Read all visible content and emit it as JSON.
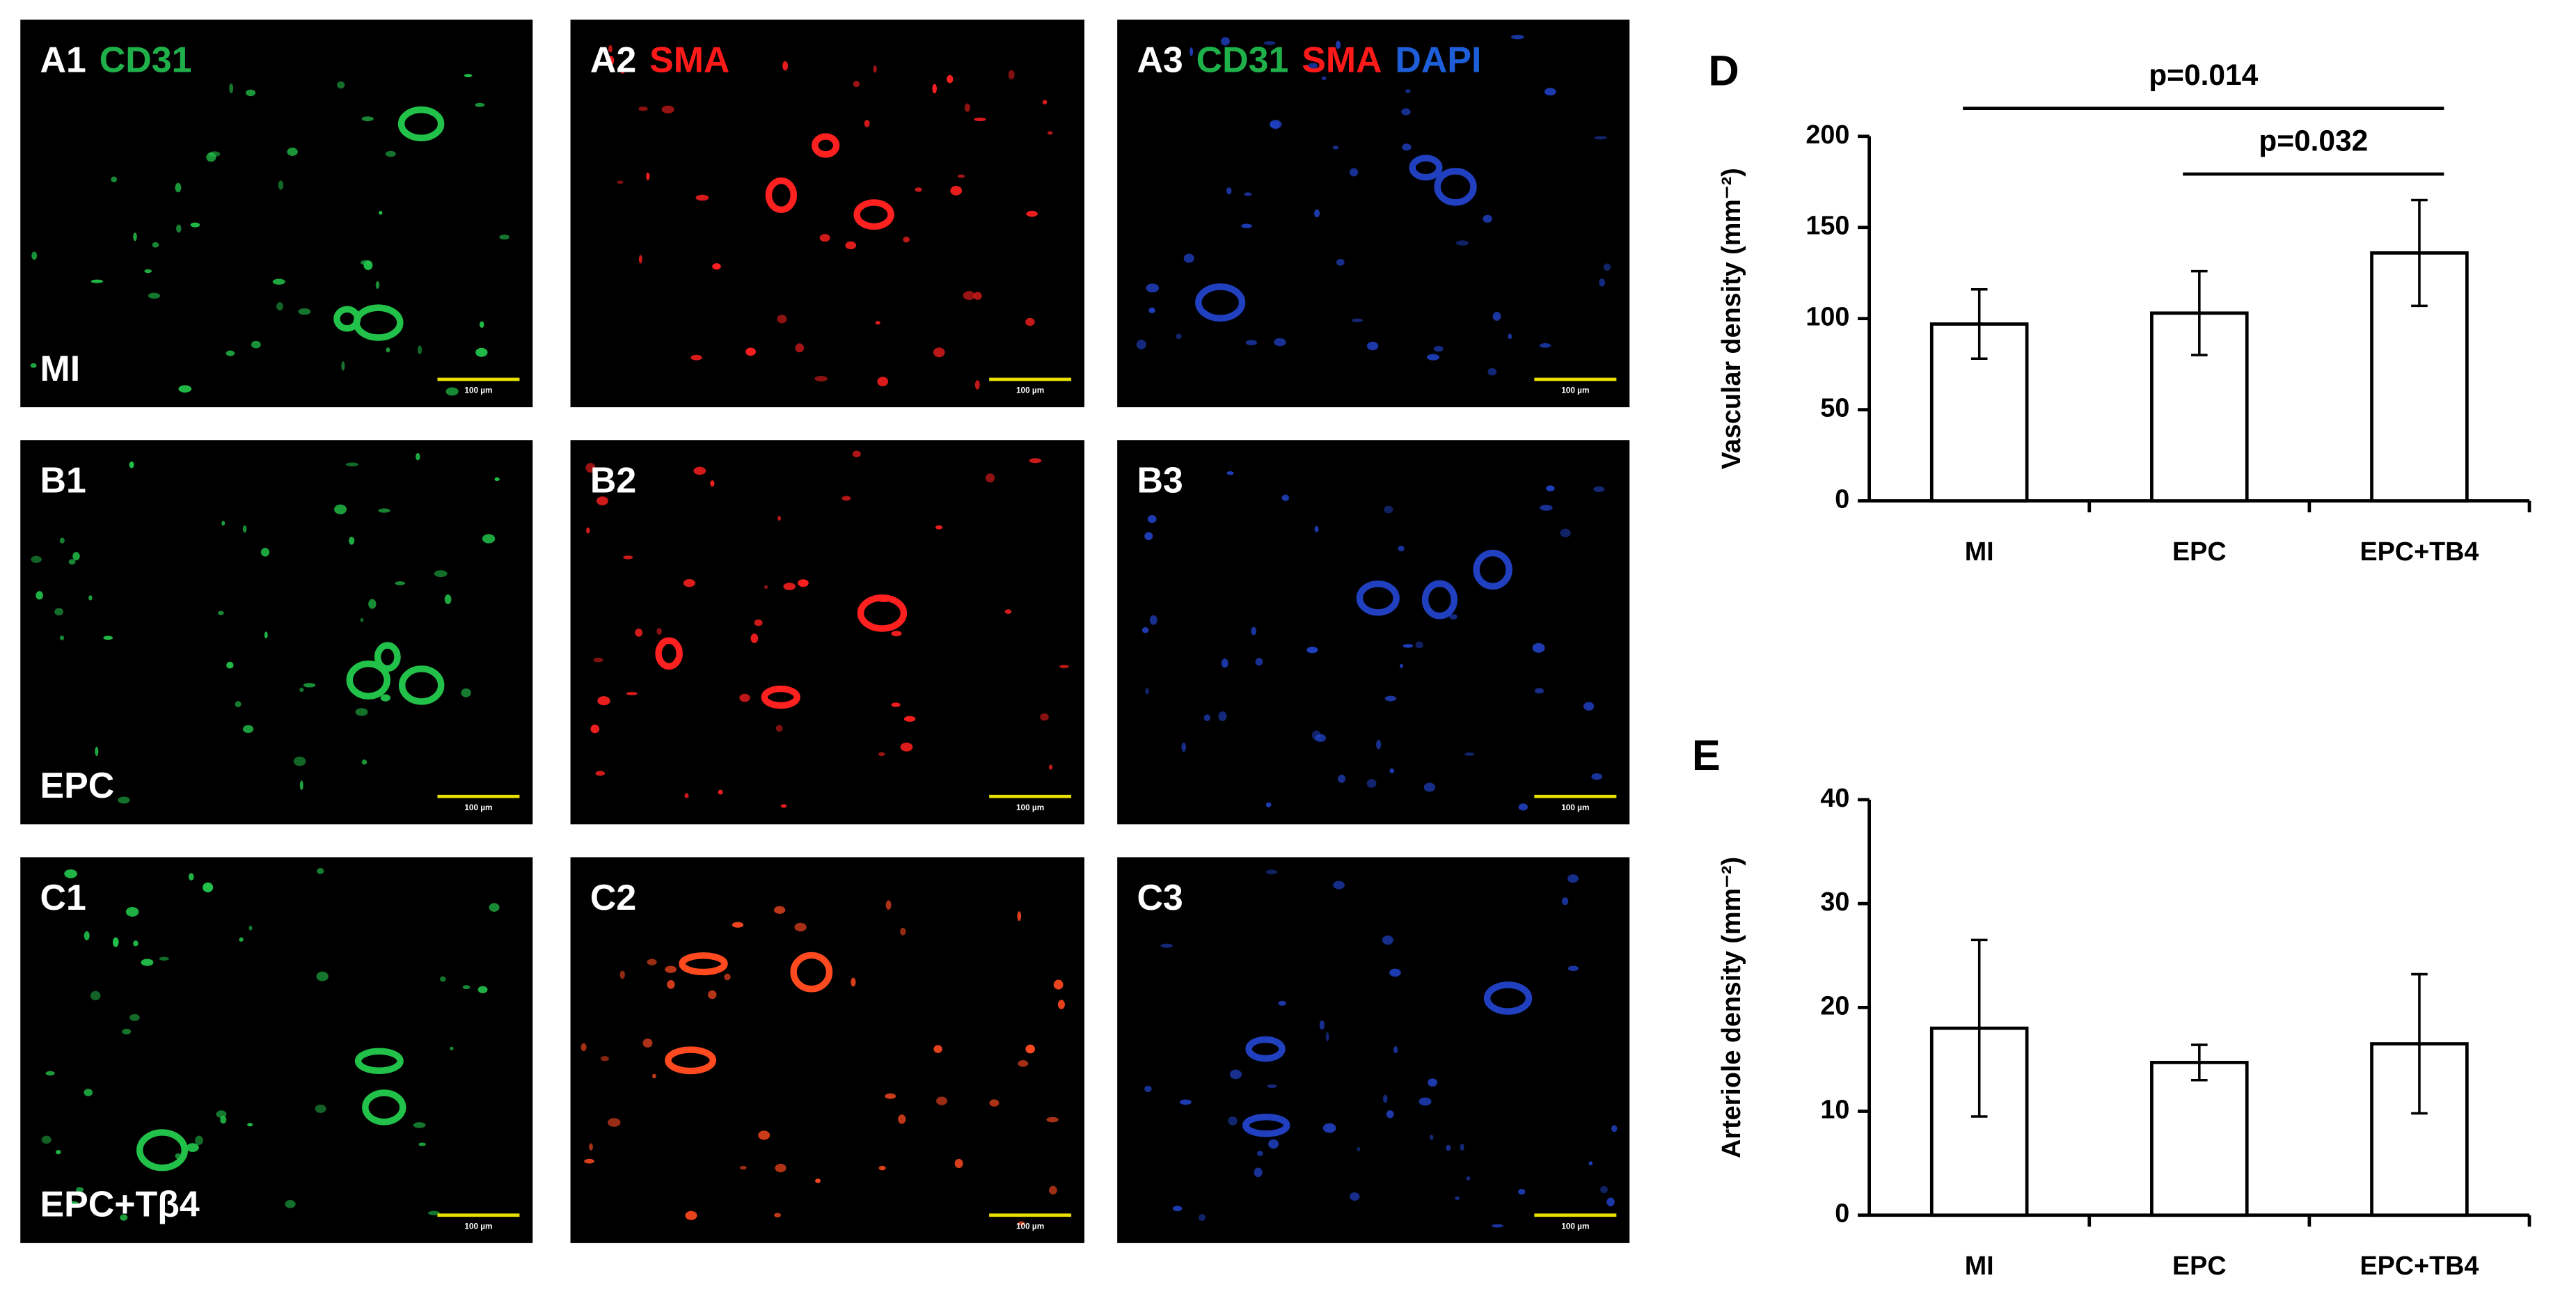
{
  "panels": [
    {
      "label": "A1",
      "stains": [
        {
          "text": "CD31",
          "color": "#1fb04a"
        }
      ],
      "group": "MI",
      "scale_bar": "100 µm",
      "tint": "#22c24a"
    },
    {
      "label": "A2",
      "stains": [
        {
          "text": "SMA",
          "color": "#ff1a1a"
        }
      ],
      "scale_bar": "100 µm",
      "tint": "#ff2020"
    },
    {
      "label": "A3",
      "stains": [
        {
          "text": "CD31",
          "color": "#1fb04a"
        },
        {
          "text": "SMA",
          "color": "#ff1a1a"
        },
        {
          "text": "DAPI",
          "color": "#1e5ed8"
        }
      ],
      "scale_bar": "100 µm",
      "tint": "#2040c0"
    },
    {
      "label": "B1",
      "stains": [],
      "group": "EPC",
      "scale_bar": "100 µm",
      "tint": "#22c24a"
    },
    {
      "label": "B2",
      "stains": [],
      "scale_bar": "100 µm",
      "tint": "#ff2020"
    },
    {
      "label": "B3",
      "stains": [],
      "scale_bar": "100 µm",
      "tint": "#2040c0"
    },
    {
      "label": "C1",
      "stains": [],
      "group": "EPC+Tβ4",
      "scale_bar": "100 µm",
      "tint": "#22c24a"
    },
    {
      "label": "C2",
      "stains": [],
      "scale_bar": "100 µm",
      "tint": "#ff4a20"
    },
    {
      "label": "C3",
      "stains": [],
      "scale_bar": "100 µm",
      "tint": "#2040c0"
    }
  ],
  "chart_data": [
    {
      "type": "bar",
      "title": "D",
      "ylabel": "Vascular density (mm⁻²)",
      "categories": [
        "MI",
        "EPC",
        "EPC+TB4"
      ],
      "values": [
        97,
        103,
        136
      ],
      "errors": [
        19,
        23,
        29
      ],
      "color": "#ffffff",
      "ylim": [
        0,
        200
      ],
      "yticks": [
        0,
        50,
        100,
        150,
        200
      ],
      "annotations": [
        "p=0.014",
        "p=0.032"
      ]
    },
    {
      "type": "bar",
      "title": "E",
      "ylabel": "Arteriole density (mm⁻²)",
      "categories": [
        "MI",
        "EPC",
        "EPC+TB4"
      ],
      "values": [
        18,
        14.7,
        16.5
      ],
      "errors": [
        8.5,
        1.7,
        6.7
      ],
      "color": "#ffffff",
      "ylim": [
        0,
        40
      ],
      "yticks": [
        0,
        10,
        20,
        30,
        40
      ]
    }
  ]
}
